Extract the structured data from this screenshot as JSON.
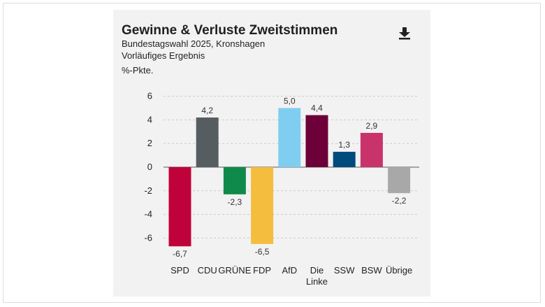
{
  "title": "Gewinne & Verluste Zweitstimmen",
  "subtitle": "Bundestagswahl 2025, Kronshagen",
  "subtitle2": "Vorläufiges Ergebnis",
  "icons": {
    "download": "download-icon"
  },
  "chart_data": {
    "type": "bar",
    "title": "Gewinne & Verluste Zweitstimmen",
    "ylabel": "%-Pkte.",
    "ylim": [
      -7.5,
      7.5
    ],
    "yticks": [
      6,
      4,
      2,
      0,
      -2,
      -4,
      -6
    ],
    "ytick_labels": [
      "6",
      "4",
      "2",
      "0",
      "-2",
      "-4",
      "-6"
    ],
    "grid": true,
    "categories": [
      [
        "SPD"
      ],
      [
        "CDU"
      ],
      [
        "GRÜNE"
      ],
      [
        "FDP"
      ],
      [
        "AfD"
      ],
      [
        "Die",
        "Linke"
      ],
      [
        "SSW"
      ],
      [
        "BSW"
      ],
      [
        "Übrige"
      ]
    ],
    "values": [
      -6.7,
      4.2,
      -2.3,
      -6.5,
      5.0,
      4.4,
      1.3,
      2.9,
      -2.2
    ],
    "value_labels": [
      "-6,7",
      "4,2",
      "-2,3",
      "-6,5",
      "5,0",
      "4,4",
      "1,3",
      "2,9",
      "-2,2"
    ],
    "colors": [
      "#c0023a",
      "#555d61",
      "#0f8a4b",
      "#f5bd3d",
      "#7fcef1",
      "#6d0038",
      "#004b7c",
      "#c9336b",
      "#a8a8a8"
    ]
  }
}
